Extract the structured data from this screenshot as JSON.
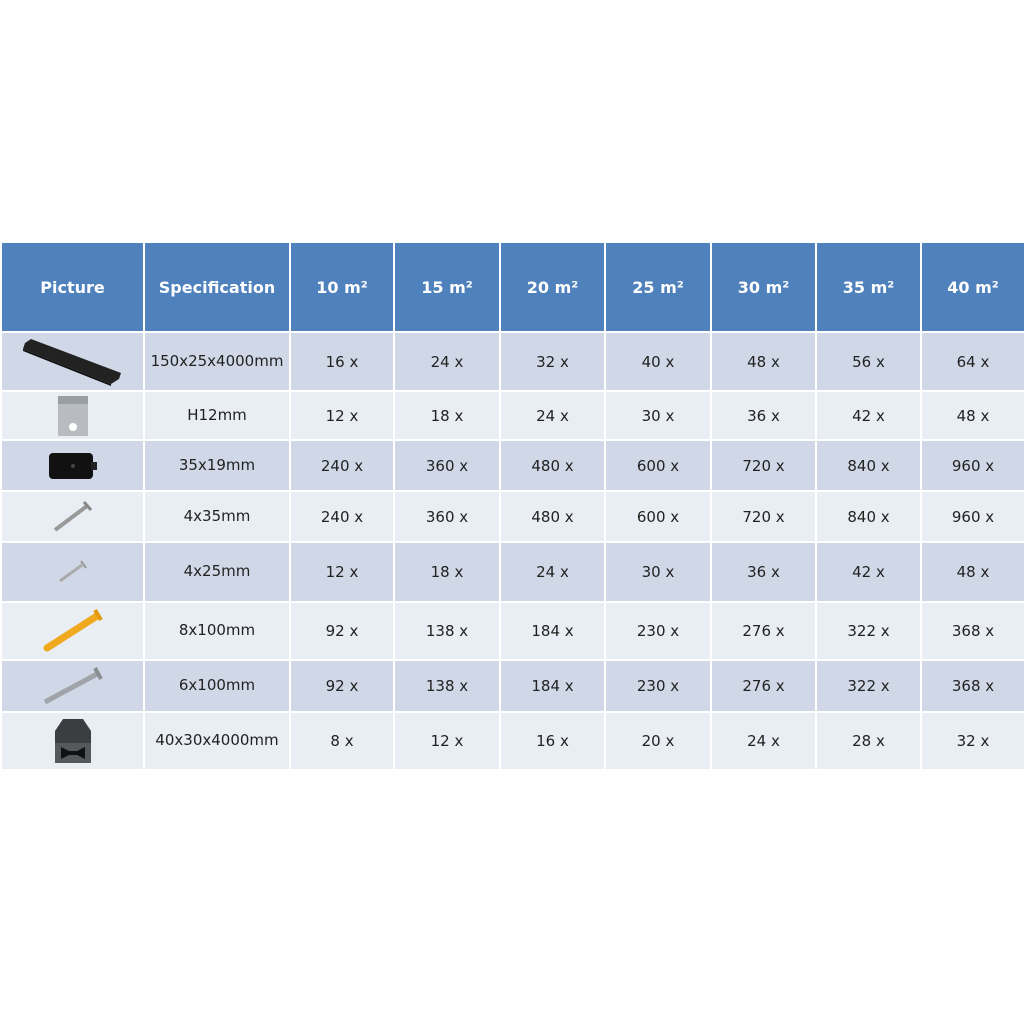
{
  "table": {
    "headers": [
      "Picture",
      "Specification",
      "10 m²",
      "15 m²",
      "20 m²",
      "25 m²",
      "30 m²",
      "35 m²",
      "40 m²"
    ],
    "rows": [
      {
        "icon": "deck-board-icon",
        "spec": "150x25x4000mm",
        "values": [
          "16 x",
          "24 x",
          "32 x",
          "40 x",
          "48 x",
          "56 x",
          "64 x"
        ]
      },
      {
        "icon": "metal-clip-icon",
        "spec": "H12mm",
        "values": [
          "12 x",
          "18 x",
          "24 x",
          "30 x",
          "36 x",
          "42 x",
          "48 x"
        ]
      },
      {
        "icon": "plastic-clip-icon",
        "spec": "35x19mm",
        "values": [
          "240 x",
          "360 x",
          "480 x",
          "600 x",
          "720 x",
          "840 x",
          "960 x"
        ]
      },
      {
        "icon": "screw-icon",
        "spec": "4x35mm",
        "values": [
          "240 x",
          "360 x",
          "480 x",
          "600 x",
          "720 x",
          "840 x",
          "960 x"
        ]
      },
      {
        "icon": "small-screw-icon",
        "spec": "4x25mm",
        "values": [
          "12 x",
          "18 x",
          "24 x",
          "30 x",
          "36 x",
          "42 x",
          "48 x"
        ]
      },
      {
        "icon": "wall-plug-icon",
        "spec": "8x100mm",
        "values": [
          "92 x",
          "138 x",
          "184 x",
          "230 x",
          "276 x",
          "322 x",
          "368 x"
        ]
      },
      {
        "icon": "long-screw-icon",
        "spec": "6x100mm",
        "values": [
          "92 x",
          "138 x",
          "184 x",
          "230 x",
          "276 x",
          "322 x",
          "368 x"
        ]
      },
      {
        "icon": "joist-icon",
        "spec": "40x30x4000mm",
        "values": [
          "8 x",
          "12 x",
          "16 x",
          "20 x",
          "24 x",
          "28 x",
          "32 x"
        ]
      }
    ]
  },
  "colors": {
    "header": "#4f81bd",
    "row_dark": "#d0d8e8",
    "row_light": "#e9edf4"
  }
}
